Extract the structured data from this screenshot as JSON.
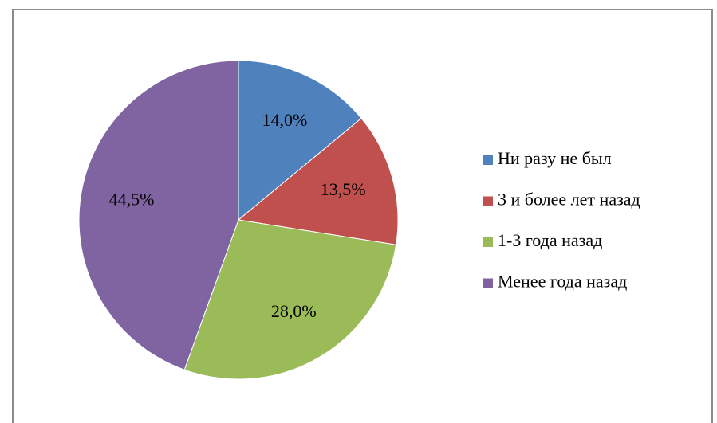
{
  "chart_data": {
    "type": "pie",
    "categories": [
      "Ни разу не был",
      "3 и более лет назад",
      "1-3 года назад",
      "Менее года назад"
    ],
    "values": [
      14.0,
      13.5,
      28.0,
      44.5
    ],
    "value_labels": [
      "14,0%",
      "13,5%",
      "28,0%",
      "44,5%"
    ],
    "colors": [
      "#4f81bd",
      "#c0504d",
      "#9bbb59",
      "#8064a2"
    ],
    "legend": "right"
  }
}
